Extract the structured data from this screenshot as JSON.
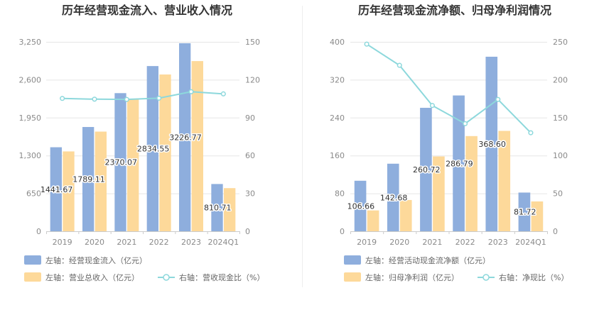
{
  "chart_data": [
    {
      "type": "bar",
      "title": "历年经营现金流入、营业收入情况",
      "categories": [
        "2019",
        "2020",
        "2021",
        "2022",
        "2023",
        "2024Q1"
      ],
      "left_axis": {
        "ticks": [
          "0",
          "650",
          "1,300",
          "1,950",
          "2,600",
          "3,250"
        ],
        "range": [
          0,
          3250
        ]
      },
      "right_axis": {
        "ticks": [
          "0",
          "30",
          "60",
          "90",
          "120",
          "150"
        ],
        "range": [
          0,
          150
        ]
      },
      "series": [
        {
          "name": "左轴：经营现金流入（亿元）",
          "type": "bar",
          "axis": "left",
          "color": "#8eaedd",
          "values": [
            1441.67,
            1789.11,
            2370.07,
            2834.55,
            3226.77,
            810.71
          ],
          "labels": [
            "1441.67",
            "1789.11",
            "2370.07",
            "2834.55",
            "3226.77",
            "810.71"
          ]
        },
        {
          "name": "左轴：营业总收入（亿元）",
          "type": "bar",
          "axis": "left",
          "color": "#fdd99a",
          "values": [
            1370,
            1710,
            2270,
            2690,
            2920,
            740
          ]
        },
        {
          "name": "右轴：营收现金比（%）",
          "type": "line",
          "axis": "right",
          "color": "#8dd8dc",
          "values": [
            105.2,
            104.6,
            104.4,
            105.4,
            110.5,
            108.8
          ]
        }
      ],
      "grid": true,
      "legend": "bottom"
    },
    {
      "type": "bar",
      "title": "历年经营现金流净额、归母净利润情况",
      "categories": [
        "2019",
        "2020",
        "2021",
        "2022",
        "2023",
        "2024Q1"
      ],
      "left_axis": {
        "ticks": [
          "0",
          "80",
          "160",
          "240",
          "320",
          "400"
        ],
        "range": [
          0,
          400
        ]
      },
      "right_axis": {
        "ticks": [
          "0",
          "50",
          "100",
          "150",
          "200",
          "250"
        ],
        "range": [
          0,
          250
        ]
      },
      "series": [
        {
          "name": "左轴：经营活动现金流净额（亿元）",
          "type": "bar",
          "axis": "left",
          "color": "#8eaedd",
          "values": [
            106.66,
            142.68,
            260.72,
            286.79,
            368.6,
            81.72
          ],
          "labels": [
            "106.66",
            "142.68",
            "260.72",
            "286.79",
            "368.60",
            "81.72"
          ]
        },
        {
          "name": "左轴：归母净利润（亿元）",
          "type": "bar",
          "axis": "left",
          "color": "#fdd99a",
          "values": [
            44,
            66,
            158,
            201,
            212,
            63
          ]
        },
        {
          "name": "右轴：净现比（%）",
          "type": "line",
          "axis": "right",
          "color": "#8dd8dc",
          "values": [
            247,
            219,
            166,
            142,
            174,
            130
          ]
        }
      ],
      "grid": true,
      "legend": "bottom"
    }
  ]
}
